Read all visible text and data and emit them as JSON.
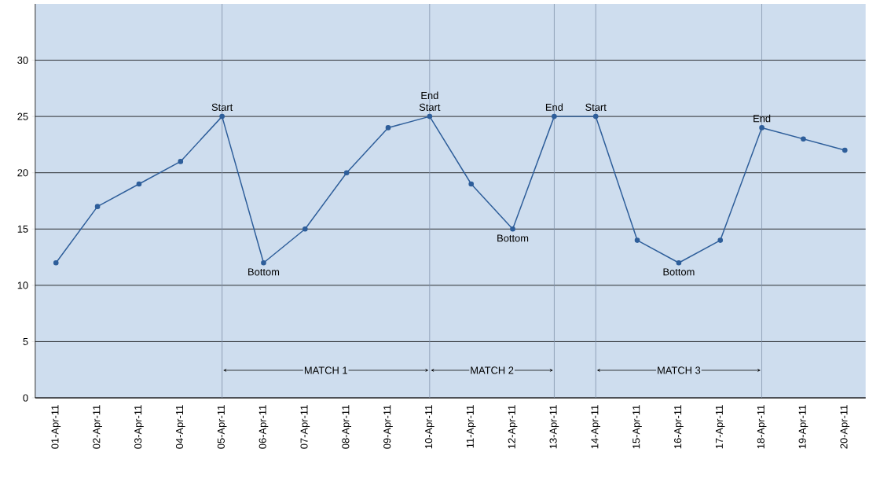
{
  "chart_data": {
    "type": "line",
    "categories": [
      "01-Apr-11",
      "02-Apr-11",
      "03-Apr-11",
      "04-Apr-11",
      "05-Apr-11",
      "06-Apr-11",
      "07-Apr-11",
      "08-Apr-11",
      "09-Apr-11",
      "10-Apr-11",
      "11-Apr-11",
      "12-Apr-11",
      "13-Apr-11",
      "14-Apr-11",
      "15-Apr-11",
      "16-Apr-11",
      "17-Apr-11",
      "18-Apr-11",
      "19-Apr-11",
      "20-Apr-11"
    ],
    "series": [
      {
        "color": "#2e5e9a",
        "values": [
          12,
          17,
          19,
          21,
          25,
          12,
          15,
          20,
          24,
          25,
          19,
          15,
          25,
          25,
          14,
          12,
          14,
          24,
          23,
          22
        ]
      }
    ],
    "ylim": [
      0,
      35
    ],
    "yticks": [
      0,
      5,
      10,
      15,
      20,
      25,
      30
    ],
    "grid": "y",
    "marker": "circle",
    "line_style": "solid",
    "ref_lines": [
      {
        "axis": "x",
        "value": "05-Apr-11",
        "color": "#8090a8"
      },
      {
        "axis": "x",
        "value": "10-Apr-11",
        "color": "#8090a8"
      },
      {
        "axis": "x",
        "value": "13-Apr-11",
        "color": "#8090a8"
      },
      {
        "axis": "x",
        "value": "14-Apr-11",
        "color": "#8090a8"
      },
      {
        "axis": "x",
        "value": "18-Apr-11",
        "color": "#8090a8"
      }
    ],
    "annotations": [
      "MATCH 1",
      "MATCH 2",
      "MATCH 3",
      {
        "text": "Start",
        "x": "05-Apr-11",
        "y": 25
      },
      {
        "text": "Bottom",
        "x": "06-Apr-11",
        "y": 12
      },
      {
        "text": "Start",
        "x": "10-Apr-11",
        "y": 25
      },
      {
        "text": "End",
        "x": "10-Apr-11",
        "y": 25
      },
      {
        "text": "Bottom",
        "x": "12-Apr-11",
        "y": 15
      },
      {
        "text": "End",
        "x": "13-Apr-11",
        "y": 25
      },
      {
        "text": "Start",
        "x": "14-Apr-11",
        "y": 25
      },
      {
        "text": "Bottom",
        "x": "16-Apr-11",
        "y": 12
      },
      {
        "text": "End",
        "x": "18-Apr-11",
        "y": 24
      }
    ]
  }
}
